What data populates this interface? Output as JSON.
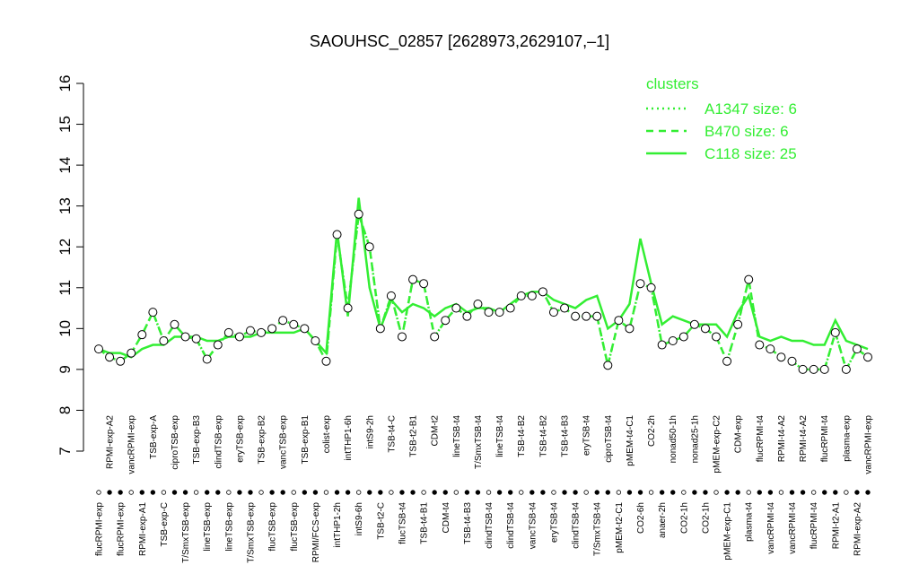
{
  "chart_data": {
    "type": "line",
    "title": "SAOUHSC_02857 [2628973,2629107,–1]",
    "legend_title": "clusters",
    "legend_position": "top-right",
    "color": "#33ee33",
    "ylim": [
      7,
      16
    ],
    "yticks": [
      7,
      8,
      9,
      10,
      11,
      12,
      13,
      14,
      15,
      16
    ],
    "categories": [
      "flucRPMI-exp",
      "RPMI-exp-A2",
      "flucRPMI-exp",
      "vancRPMI-exp",
      "RPMI-exp-A1",
      "TSB-exp-A",
      "TSB-exp-C",
      "ciproTSB-exp",
      "T/SmxTSB-exp",
      "TSB-exp-B3",
      "lineTSB-exp",
      "clindTSB-exp",
      "lineTSB-exp",
      "eryTSB-exp",
      "T/SmxTSB-exp",
      "TSB-exp-B2",
      "flucTSB-exp",
      "vancTSB-exp",
      "flucTSB-exp",
      "TSB-exp-B1",
      "RPMI/FCS-exp",
      "colist-exp",
      "intTHP1-2h",
      "intTHP1-6h",
      "intS9-6h",
      "intS9-2h",
      "TSB-t2-C",
      "TSB-t4-C",
      "flucTSB-t4",
      "TSB-t2-B1",
      "TSB-t4-B1",
      "CDM-t2",
      "CDM-t4",
      "lineTSB-t4",
      "TSB-t4-B3",
      "T/SmxTSB-t4",
      "clindTSB-t4",
      "lineTSB-t4",
      "clindTSB-t4",
      "TSB-t4-B2",
      "vancTSB-t4",
      "TSB-t4-B2",
      "eryTSB-t4",
      "TSB-t4-B3",
      "clindTSB-t4",
      "eryTSB-t4",
      "T/SmxTSB-t4",
      "ciproTSB-t4",
      "pMEM-t2-C1",
      "pMEM-t4-C1",
      "CO2-6h",
      "CO2-2h",
      "anaer-2h",
      "nonad50-1h",
      "CO2-1h",
      "nonad25-1h",
      "CO2-1h",
      "pMEM-exp-C2",
      "pMEM-exp-C1",
      "CDM-exp",
      "plasma-t4",
      "flucRPMI-t4",
      "vancRPMI-t4",
      "RPMI-t4-A2",
      "vancRPMI-t4",
      "RPMI-t4-A2",
      "flucRPMI-t4",
      "flucRPMI-t4",
      "RPMI-t2-A1",
      "plasma-exp",
      "RPMI-exp-A2",
      "vancRPMI-exp"
    ],
    "points": {
      "values": [
        9.5,
        9.3,
        9.2,
        9.4,
        9.85,
        10.4,
        9.7,
        10.1,
        9.8,
        9.75,
        9.25,
        9.6,
        9.9,
        9.8,
        9.95,
        9.9,
        10.0,
        10.2,
        10.1,
        10.0,
        9.7,
        9.2,
        12.3,
        10.5,
        12.8,
        12.0,
        10.0,
        10.8,
        9.8,
        11.2,
        11.1,
        9.8,
        10.2,
        10.5,
        10.3,
        10.6,
        10.4,
        10.4,
        10.5,
        10.8,
        10.8,
        10.9,
        10.4,
        10.5,
        10.3,
        10.3,
        10.3,
        9.1,
        10.2,
        10.0,
        11.1,
        11.0,
        9.6,
        9.7,
        9.8,
        10.1,
        10.0,
        9.8,
        9.2,
        10.1,
        11.2,
        9.6,
        9.5,
        9.3,
        9.2,
        9.0,
        9.0,
        9.0,
        9.9,
        9.0,
        9.5,
        9.3
      ]
    },
    "series": [
      {
        "name": "A1347 size: 6",
        "style": "dotted",
        "values": [
          9.5,
          9.3,
          9.2,
          9.4,
          9.85,
          10.4,
          9.7,
          10.1,
          9.8,
          9.75,
          9.25,
          9.6,
          9.9,
          9.8,
          9.95,
          9.9,
          10.0,
          10.2,
          10.1,
          10.0,
          9.7,
          9.2,
          12.3,
          10.5,
          12.8,
          12.0,
          10.0,
          10.8,
          9.8,
          11.2,
          11.1,
          9.8,
          10.2,
          10.5,
          10.3,
          10.6,
          10.4,
          10.4,
          10.5,
          10.8,
          10.8,
          10.9,
          10.4,
          10.5,
          10.3,
          10.3,
          10.3,
          9.1,
          10.2,
          10.0,
          11.1,
          11.0,
          9.6,
          9.7,
          9.8,
          10.1,
          10.0,
          9.8,
          9.2,
          10.1,
          11.2,
          9.6,
          9.5,
          9.3,
          9.2,
          9.0,
          9.0,
          9.0,
          9.9,
          9.0,
          9.5,
          9.3
        ]
      },
      {
        "name": "B470 size: 6",
        "style": "dashed",
        "values": [
          9.5,
          9.3,
          9.2,
          9.4,
          9.85,
          10.4,
          9.7,
          10.1,
          9.8,
          9.75,
          9.25,
          9.6,
          9.9,
          9.8,
          9.95,
          9.9,
          10.0,
          10.2,
          10.1,
          10.0,
          9.7,
          9.2,
          12.3,
          10.5,
          12.8,
          12.0,
          10.0,
          10.8,
          9.8,
          11.2,
          11.1,
          9.8,
          10.2,
          10.5,
          10.3,
          10.6,
          10.4,
          10.4,
          10.5,
          10.8,
          10.8,
          10.9,
          10.4,
          10.5,
          10.3,
          10.3,
          10.3,
          9.1,
          10.2,
          10.0,
          11.1,
          11.0,
          9.6,
          9.7,
          9.8,
          10.1,
          10.0,
          9.8,
          9.2,
          10.1,
          11.2,
          9.6,
          9.5,
          9.3,
          9.2,
          9.0,
          9.0,
          9.0,
          9.9,
          9.0,
          9.5,
          9.3
        ]
      },
      {
        "name": "C118 size: 25",
        "style": "solid",
        "values": [
          9.5,
          9.4,
          9.4,
          9.3,
          9.5,
          9.6,
          9.6,
          9.8,
          9.8,
          9.8,
          9.7,
          9.7,
          9.8,
          9.8,
          9.8,
          9.9,
          9.9,
          9.9,
          9.9,
          10.0,
          9.7,
          9.4,
          12.4,
          10.3,
          13.2,
          11.0,
          10.0,
          10.7,
          10.4,
          10.6,
          10.5,
          10.3,
          10.5,
          10.6,
          10.4,
          10.5,
          10.5,
          10.4,
          10.6,
          10.8,
          10.9,
          10.9,
          10.7,
          10.6,
          10.5,
          10.7,
          10.8,
          10.0,
          10.2,
          10.6,
          12.2,
          11.1,
          10.1,
          10.3,
          10.2,
          10.1,
          10.1,
          10.1,
          9.8,
          10.4,
          10.8,
          9.8,
          9.7,
          9.8,
          9.7,
          9.7,
          9.6,
          9.6,
          10.2,
          9.7,
          9.6,
          9.5
        ]
      }
    ]
  }
}
